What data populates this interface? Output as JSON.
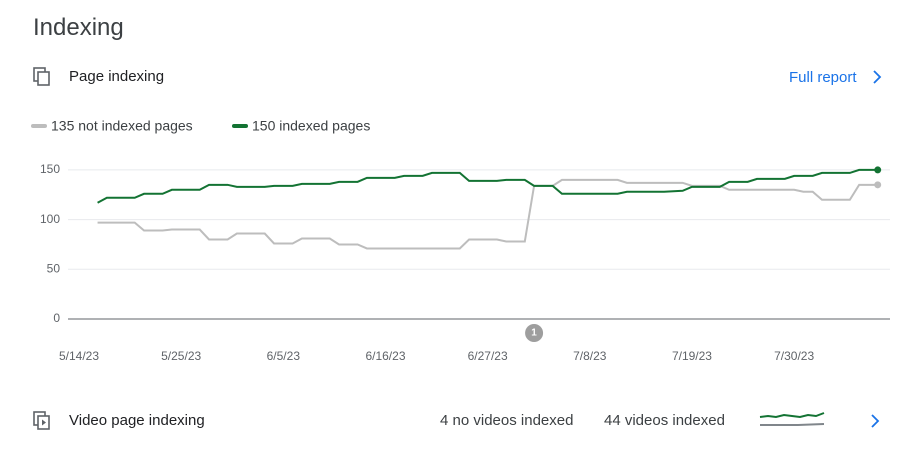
{
  "header": {
    "title": "Indexing"
  },
  "page_indexing": {
    "title": "Page indexing",
    "link": "Full report"
  },
  "chart_data": {
    "type": "line",
    "series": [
      {
        "name": "135 not indexed pages",
        "color": "#bdbdbd",
        "x": [
          "5/16/23",
          "5/20/23",
          "5/21/23",
          "5/23/23",
          "5/24/23",
          "5/27/23",
          "5/28/23",
          "5/30/23",
          "5/31/23",
          "6/3/23",
          "6/4/23",
          "6/6/23",
          "6/7/23",
          "6/10/23",
          "6/11/23",
          "6/13/23",
          "6/14/23",
          "6/24/23",
          "6/25/23",
          "6/28/23",
          "6/29/23",
          "7/1/23",
          "7/2/23",
          "7/4/23",
          "7/5/23",
          "7/11/23",
          "7/12/23",
          "7/18/23",
          "7/19/23",
          "7/22/23",
          "7/23/23",
          "7/30/23",
          "7/31/23",
          "8/1/23",
          "8/2/23",
          "8/5/23",
          "8/6/23",
          "8/8/23"
        ],
        "values": [
          97,
          97,
          89,
          89,
          90,
          90,
          80,
          80,
          86,
          86,
          76,
          76,
          81,
          81,
          75,
          75,
          71,
          71,
          80,
          80,
          78,
          78,
          134,
          134,
          140,
          140,
          137,
          137,
          134,
          134,
          130,
          130,
          128,
          128,
          120,
          120,
          135,
          135
        ]
      },
      {
        "name": "150 indexed pages",
        "color": "#137333",
        "x": [
          "5/16/23",
          "5/17/23",
          "5/20/23",
          "5/21/23",
          "5/23/23",
          "5/24/23",
          "5/27/23",
          "5/28/23",
          "5/30/23",
          "5/31/23",
          "6/3/23",
          "6/4/23",
          "6/6/23",
          "6/7/23",
          "6/10/23",
          "6/11/23",
          "6/13/23",
          "6/14/23",
          "6/17/23",
          "6/18/23",
          "6/20/23",
          "6/21/23",
          "6/24/23",
          "6/25/23",
          "6/28/23",
          "6/29/23",
          "7/1/23",
          "7/2/23",
          "7/4/23",
          "7/5/23",
          "7/11/23",
          "7/12/23",
          "7/16/23",
          "7/18/23",
          "7/19/23",
          "7/22/23",
          "7/23/23",
          "7/25/23",
          "7/26/23",
          "7/29/23",
          "7/30/23",
          "8/1/23",
          "8/2/23",
          "8/5/23",
          "8/6/23",
          "8/8/23"
        ],
        "values": [
          117,
          122,
          122,
          126,
          126,
          130,
          130,
          135,
          135,
          133,
          133,
          134,
          134,
          136,
          136,
          138,
          138,
          142,
          142,
          144,
          144,
          147,
          147,
          139,
          139,
          140,
          140,
          134,
          134,
          126,
          126,
          128,
          128,
          129,
          133,
          133,
          138,
          138,
          141,
          141,
          144,
          144,
          147,
          147,
          150,
          150
        ]
      }
    ],
    "xlim": [
      "5/14/23",
      "8/9/23"
    ],
    "xticks": [
      "5/14/23",
      "5/25/23",
      "6/5/23",
      "6/16/23",
      "6/27/23",
      "7/8/23",
      "7/19/23",
      "7/30/23"
    ],
    "ylim": [
      0,
      162
    ],
    "yticks": [
      0,
      50,
      100,
      150
    ],
    "grid": true,
    "annotations": [
      {
        "x": "7/2/23",
        "label": "1"
      }
    ]
  },
  "video_indexing": {
    "title": "Video page indexing",
    "not_indexed": "4 no videos indexed",
    "indexed": "44 videos indexed"
  }
}
